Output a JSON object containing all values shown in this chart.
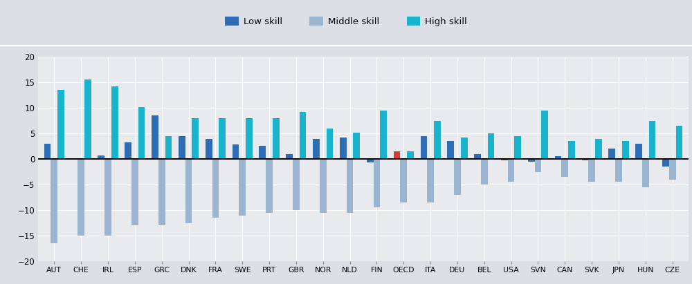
{
  "countries": [
    "AUT",
    "CHE",
    "IRL",
    "ESP",
    "GRC",
    "DNK",
    "FRA",
    "SWE",
    "PRT",
    "GBR",
    "NOR",
    "NLD",
    "FIN",
    "OECD",
    "ITA",
    "DEU",
    "BEL",
    "USA",
    "SVN",
    "CAN",
    "SVK",
    "JPN",
    "HUN",
    "CZE"
  ],
  "low_skill": [
    3.0,
    0.0,
    0.7,
    3.2,
    8.5,
    4.5,
    4.0,
    2.8,
    2.6,
    1.0,
    4.0,
    4.2,
    -0.7,
    1.5,
    4.5,
    3.5,
    1.0,
    -0.3,
    -0.5,
    0.5,
    -0.3,
    2.0,
    3.0,
    -1.5
  ],
  "mid_skill": [
    -16.5,
    -15.0,
    -15.0,
    -13.0,
    -13.0,
    -12.5,
    -11.5,
    -11.0,
    -10.5,
    -10.0,
    -10.5,
    -10.5,
    -9.5,
    -8.5,
    -8.5,
    -7.0,
    -5.0,
    -4.5,
    -2.5,
    -3.5,
    -4.5,
    -4.5,
    -5.5,
    -4.0
  ],
  "high_skill": [
    13.5,
    15.5,
    14.2,
    10.2,
    4.5,
    8.0,
    8.0,
    8.0,
    8.0,
    9.2,
    6.0,
    5.2,
    9.5,
    1.5,
    7.5,
    4.2,
    5.0,
    4.5,
    9.5,
    3.5,
    4.0,
    3.5,
    7.5,
    6.5
  ],
  "color_low": "#2e6db4",
  "color_mid": "#9bb4d0",
  "color_high": "#1ab3ce",
  "color_oecd_low": "#d93b3b",
  "ylim": [
    -20,
    20
  ],
  "yticks": [
    -20,
    -15,
    -10,
    -5,
    0,
    5,
    10,
    15,
    20
  ],
  "fig_bg_color": "#dce0e6",
  "plot_bg": "#e8eaed",
  "legend_labels": [
    "Low skill",
    "Middle skill",
    "High skill"
  ],
  "bar_width": 0.25
}
